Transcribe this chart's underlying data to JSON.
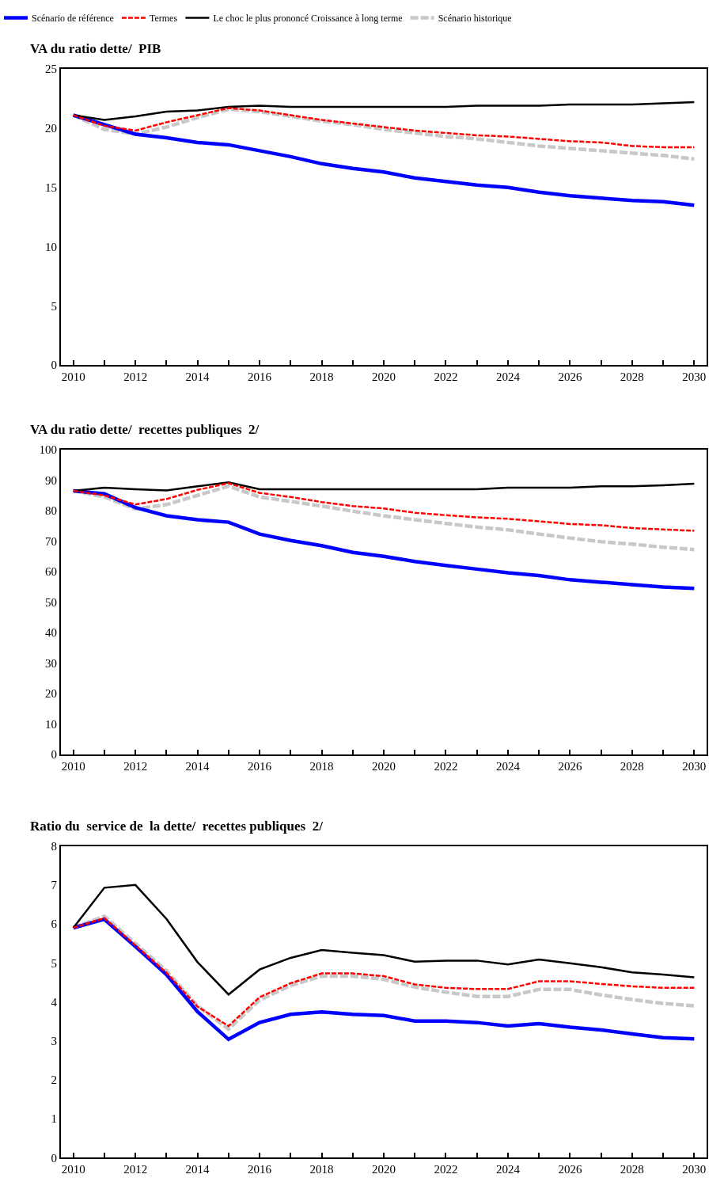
{
  "chart_data": [
    {
      "type": "line",
      "title": "VA du ratio dette/  PIB",
      "x": [
        2010,
        2011,
        2012,
        2013,
        2014,
        2015,
        2016,
        2017,
        2018,
        2019,
        2020,
        2021,
        2022,
        2023,
        2024,
        2025,
        2026,
        2027,
        2028,
        2029,
        2030
      ],
      "xlim": [
        2009.6,
        2030.4
      ],
      "xticks": [
        2010,
        2012,
        2014,
        2016,
        2018,
        2020,
        2022,
        2024,
        2026,
        2028,
        2030
      ],
      "ylim": [
        0,
        25
      ],
      "yticks": [
        0,
        5,
        10,
        15,
        20,
        25
      ],
      "legend": "top",
      "marker": "none",
      "series": [
        {
          "name": "Scénario de référence",
          "color": "#0000ff",
          "line_style": "solid",
          "values": [
            21.1,
            20.3,
            19.5,
            19.2,
            18.8,
            18.6,
            18.1,
            17.6,
            17.0,
            16.6,
            16.3,
            15.8,
            15.5,
            15.2,
            15.0,
            14.6,
            14.3,
            14.1,
            13.9,
            13.8,
            13.5
          ]
        },
        {
          "name": "Termes",
          "color": "#ff0000",
          "line_style": "dashed",
          "values": [
            21.1,
            20.2,
            19.8,
            20.5,
            21.1,
            21.7,
            21.5,
            21.1,
            20.7,
            20.4,
            20.1,
            19.8,
            19.6,
            19.4,
            19.3,
            19.1,
            18.9,
            18.8,
            18.5,
            18.4,
            18.4
          ]
        },
        {
          "name": "Le choc le plus prononcé Croissance à long terme",
          "color": "#000000",
          "line_style": "solid",
          "values": [
            21.1,
            20.7,
            21.0,
            21.4,
            21.5,
            21.8,
            21.9,
            21.8,
            21.8,
            21.8,
            21.8,
            21.8,
            21.8,
            21.9,
            21.9,
            21.9,
            22.0,
            22.0,
            22.0,
            22.1,
            22.2
          ]
        },
        {
          "name": "Scénario historique",
          "color": "#c8c8c8",
          "line_style": "dashed",
          "values": [
            21.1,
            19.9,
            19.5,
            20.1,
            20.9,
            21.6,
            21.4,
            21.0,
            20.6,
            20.3,
            19.9,
            19.6,
            19.3,
            19.1,
            18.8,
            18.5,
            18.3,
            18.1,
            17.9,
            17.7,
            17.4
          ]
        }
      ]
    },
    {
      "type": "line",
      "title": "VA du ratio dette/  recettes publiques  2/",
      "x": [
        2010,
        2011,
        2012,
        2013,
        2014,
        2015,
        2016,
        2017,
        2018,
        2019,
        2020,
        2021,
        2022,
        2023,
        2024,
        2025,
        2026,
        2027,
        2028,
        2029,
        2030
      ],
      "xlim": [
        2009.6,
        2030.4
      ],
      "xticks": [
        2010,
        2012,
        2014,
        2016,
        2018,
        2020,
        2022,
        2024,
        2026,
        2028,
        2030
      ],
      "ylim": [
        0,
        100
      ],
      "yticks": [
        0,
        10,
        20,
        30,
        40,
        50,
        60,
        70,
        80,
        90,
        100
      ],
      "marker": "none",
      "series": [
        {
          "color": "#0000ff",
          "line_style": "solid",
          "values": [
            86.5,
            85.5,
            81,
            78.3,
            77,
            76.2,
            72.3,
            70.2,
            68.5,
            66.3,
            65,
            63.3,
            62,
            60.8,
            59.6,
            58.7,
            57.3,
            56.5,
            55.7,
            54.9,
            54.5
          ]
        },
        {
          "color": "#ff0000",
          "line_style": "dashed",
          "values": [
            86.5,
            85,
            82,
            83.8,
            86.8,
            89,
            85.8,
            84.5,
            82.8,
            81.5,
            80.7,
            79.3,
            78.5,
            77.8,
            77.3,
            76.5,
            75.6,
            75.2,
            74.3,
            73.8,
            73.4
          ]
        },
        {
          "color": "#000000",
          "line_style": "solid",
          "values": [
            86.5,
            87.5,
            87,
            86.6,
            88,
            89.3,
            87,
            87,
            87,
            87,
            87,
            87,
            87,
            87,
            87.5,
            87.5,
            87.5,
            88,
            88,
            88.3,
            88.8
          ]
        },
        {
          "color": "#c8c8c8",
          "line_style": "dashed",
          "values": [
            86.5,
            84.5,
            80.5,
            82,
            85,
            88,
            84.5,
            83,
            81.5,
            79.8,
            78.3,
            77,
            75.8,
            74.6,
            73.7,
            72.3,
            71,
            69.8,
            69,
            68,
            67.2
          ]
        }
      ]
    },
    {
      "type": "line",
      "title": "Ratio du  service de  la dette/  recettes publiques  2/",
      "x": [
        2010,
        2011,
        2012,
        2013,
        2014,
        2015,
        2016,
        2017,
        2018,
        2019,
        2020,
        2021,
        2022,
        2023,
        2024,
        2025,
        2026,
        2027,
        2028,
        2029,
        2030
      ],
      "xlim": [
        2009.6,
        2030.4
      ],
      "xticks": [
        2010,
        2012,
        2014,
        2016,
        2018,
        2020,
        2022,
        2024,
        2026,
        2028,
        2030
      ],
      "ylim": [
        0,
        8
      ],
      "yticks": [
        0,
        1,
        2,
        3,
        4,
        5,
        6,
        7,
        8
      ],
      "marker": "none",
      "series": [
        {
          "color": "#0000ff",
          "line_style": "solid",
          "values": [
            5.9,
            6.12,
            5.42,
            4.7,
            3.75,
            3.04,
            3.47,
            3.68,
            3.74,
            3.68,
            3.65,
            3.51,
            3.51,
            3.47,
            3.38,
            3.44,
            3.35,
            3.28,
            3.18,
            3.08,
            3.05
          ]
        },
        {
          "color": "#ff0000",
          "line_style": "dashed",
          "values": [
            5.9,
            6.15,
            5.45,
            4.75,
            3.88,
            3.38,
            4.12,
            4.48,
            4.73,
            4.73,
            4.66,
            4.45,
            4.36,
            4.33,
            4.33,
            4.53,
            4.53,
            4.46,
            4.4,
            4.36,
            4.36
          ]
        },
        {
          "color": "#000000",
          "line_style": "solid",
          "values": [
            5.9,
            6.93,
            7.0,
            6.13,
            5.02,
            4.19,
            4.83,
            5.13,
            5.33,
            5.26,
            5.2,
            5.03,
            5.06,
            5.06,
            4.96,
            5.09,
            4.99,
            4.89,
            4.76,
            4.7,
            4.63
          ]
        },
        {
          "color": "#c8c8c8",
          "line_style": "dashed",
          "values": [
            5.9,
            6.2,
            5.5,
            4.8,
            3.9,
            3.3,
            4.05,
            4.42,
            4.66,
            4.66,
            4.58,
            4.38,
            4.25,
            4.14,
            4.14,
            4.32,
            4.32,
            4.18,
            4.06,
            3.96,
            3.9
          ]
        }
      ]
    }
  ]
}
